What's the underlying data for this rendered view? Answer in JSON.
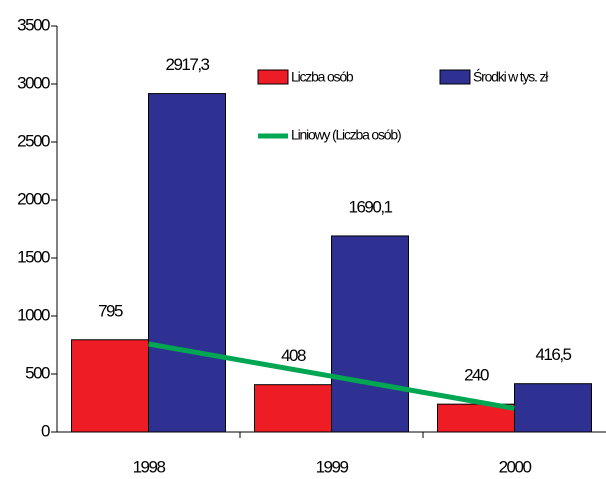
{
  "chart_data": {
    "type": "bar",
    "categories": [
      "1998",
      "1999",
      "2000"
    ],
    "series": [
      {
        "name": "Liczba osób",
        "color": "#ee1c25",
        "values": [
          795,
          408,
          240
        ],
        "value_labels": [
          "795",
          "408",
          "240"
        ]
      },
      {
        "name": "Środki w tys. zł",
        "color": "#2e3192",
        "values": [
          2917.3,
          1690.1,
          416.5
        ],
        "value_labels": [
          "2917,3",
          "1690,1",
          "416,5"
        ]
      }
    ],
    "trendline": {
      "name": "Liniowy (Liczba osób)",
      "color": "#00a651",
      "values": [
        758.5,
        481,
        203.5
      ]
    },
    "ylim": [
      0,
      3500
    ],
    "yticks": [
      0,
      500,
      1000,
      1500,
      2000,
      2500,
      3000,
      3500
    ],
    "grid": false,
    "legend": "top-right"
  }
}
